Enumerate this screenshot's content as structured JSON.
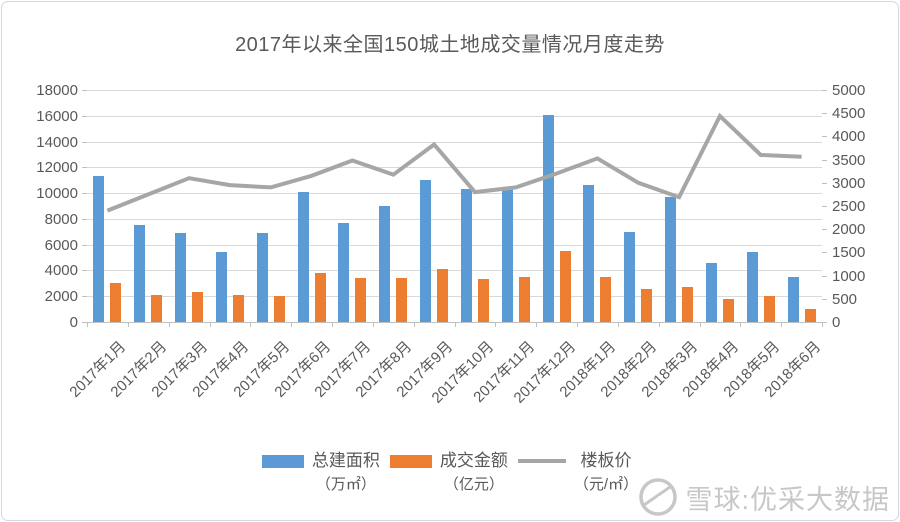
{
  "title": "2017年以来全国150城土地成交量情况月度走势",
  "watermark": {
    "logo": "snowball-logo",
    "text": "雪球:优采大数据"
  },
  "legend": [
    {
      "label": "总建面积",
      "sub": "（万㎡）",
      "swatch_color": "#5b9bd5",
      "swatch_type": "bar"
    },
    {
      "label": "成交金额",
      "sub": "（亿元）",
      "swatch_color": "#ed7d31",
      "swatch_type": "bar"
    },
    {
      "label": "楼板价",
      "sub": "（元/㎡）",
      "swatch_color": "#a6a6a6",
      "swatch_type": "line"
    }
  ],
  "chart_data": {
    "type": "bar",
    "subtype": "bar+line combo, dual axis",
    "title": "2017年以来全国150城土地成交量情况月度走势",
    "grid": true,
    "legend_position": "bottom",
    "categories": [
      "2017年1月",
      "2017年2月",
      "2017年3月",
      "2017年4月",
      "2017年5月",
      "2017年6月",
      "2017年7月",
      "2017年8月",
      "2017年9月",
      "2017年10月",
      "2017年11月",
      "2017年12月",
      "2018年1月",
      "2018年2月",
      "2018年3月",
      "2018年4月",
      "2018年5月",
      "2018年6月"
    ],
    "series": [
      {
        "name": "总建面积（万㎡）",
        "type": "bar",
        "axis": "left",
        "color": "#5b9bd5",
        "values": [
          11300,
          7500,
          6900,
          5400,
          6900,
          10100,
          7700,
          9000,
          11000,
          10300,
          10500,
          16100,
          10600,
          7000,
          9700,
          4600,
          5400,
          3500
        ]
      },
      {
        "name": "成交金额（亿元）",
        "type": "bar",
        "axis": "left",
        "color": "#ed7d31",
        "values": [
          3000,
          2100,
          2300,
          2100,
          2000,
          3800,
          3400,
          3400,
          4100,
          3300,
          3500,
          5500,
          3500,
          2600,
          2700,
          1800,
          2000,
          1000
        ]
      },
      {
        "name": "楼板价（元/㎡）",
        "type": "line",
        "axis": "right",
        "color": "#a6a6a6",
        "values": [
          2400,
          2750,
          3100,
          2950,
          2900,
          3150,
          3480,
          3175,
          3825,
          2800,
          2900,
          3200,
          3525,
          3000,
          2690,
          4440,
          3600,
          3560
        ]
      }
    ],
    "left_axis": {
      "min": 0,
      "max": 18000,
      "step": 2000,
      "tick_labels": [
        "18000",
        "16000",
        "14000",
        "12000",
        "10000",
        "8000",
        "6000",
        "4000",
        "2000",
        "0"
      ]
    },
    "right_axis": {
      "min": 0,
      "max": 5000,
      "step": 500,
      "tick_labels": [
        "5000",
        "4500",
        "4000",
        "3500",
        "3000",
        "2500",
        "2000",
        "1500",
        "1000",
        "500",
        "0"
      ]
    }
  },
  "colors": {
    "bar_blue": "#5b9bd5",
    "bar_orange": "#ed7d31",
    "line_gray": "#a6a6a6",
    "gridline": "#d9d9d9",
    "axis_text": "#595959",
    "watermark": "#c7c7c7"
  }
}
